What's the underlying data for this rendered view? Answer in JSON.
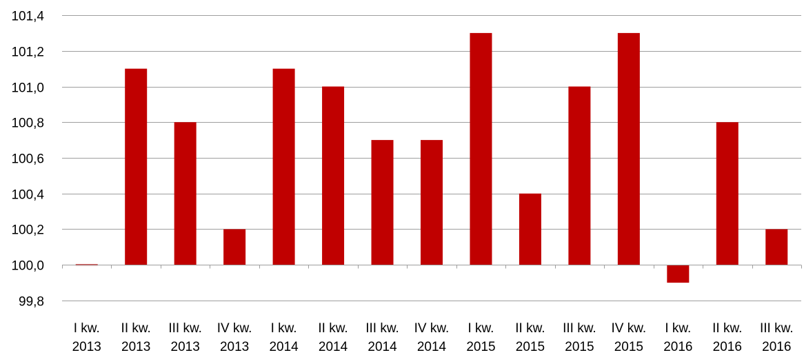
{
  "chart_data": {
    "type": "bar",
    "title": "",
    "xlabel": "",
    "ylabel": "",
    "categories": [
      [
        "I kw.",
        "2013"
      ],
      [
        "II kw.",
        "2013"
      ],
      [
        "III kw.",
        "2013"
      ],
      [
        "IV kw.",
        "2013"
      ],
      [
        "I kw.",
        "2014"
      ],
      [
        "II kw.",
        "2014"
      ],
      [
        "III kw.",
        "2014"
      ],
      [
        "IV kw.",
        "2014"
      ],
      [
        "I kw.",
        "2015"
      ],
      [
        "II kw.",
        "2015"
      ],
      [
        "III kw.",
        "2015"
      ],
      [
        "IV kw.",
        "2015"
      ],
      [
        "I kw.",
        "2016"
      ],
      [
        "II kw.",
        "2016"
      ],
      [
        "III kw.",
        "2016"
      ]
    ],
    "values": [
      100.0,
      101.1,
      100.8,
      100.2,
      101.1,
      101.0,
      100.7,
      100.7,
      101.3,
      100.4,
      101.0,
      101.3,
      99.9,
      100.8,
      100.2
    ],
    "baseline": 100.0,
    "ylim": [
      99.8,
      101.4
    ],
    "yticks": [
      99.8,
      100.0,
      100.2,
      100.4,
      100.6,
      100.8,
      101.0,
      101.2,
      101.4
    ],
    "ytick_labels": [
      "99,8",
      "100,0",
      "100,2",
      "100,4",
      "100,6",
      "100,8",
      "101,0",
      "101,2",
      "101,4"
    ],
    "grid": true,
    "legend": "none",
    "bar_color": "#c00000",
    "grid_color": "#9e9e9e"
  }
}
